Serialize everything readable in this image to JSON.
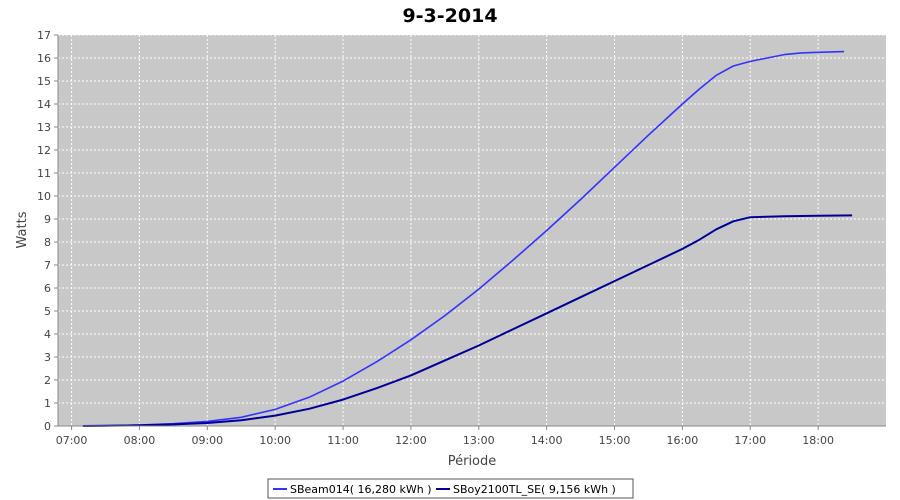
{
  "chart_data": {
    "type": "line",
    "title": "9-3-2014",
    "xlabel": "Période",
    "ylabel": "Watts",
    "x_ticks": [
      "07:00",
      "08:00",
      "09:00",
      "10:00",
      "11:00",
      "12:00",
      "13:00",
      "14:00",
      "15:00",
      "16:00",
      "17:00",
      "18:00"
    ],
    "xlim": [
      "06:48",
      "19:00"
    ],
    "ylim": [
      0,
      17
    ],
    "y_ticks": [
      0,
      1,
      2,
      3,
      4,
      5,
      6,
      7,
      8,
      9,
      10,
      11,
      12,
      13,
      14,
      15,
      16,
      17
    ],
    "grid": true,
    "legend_position": "bottom",
    "colors": {
      "plot_background": "#c8c8c8",
      "grid": "#ffffff",
      "series_1": "#3333ff",
      "series_2": "#000099"
    },
    "series": [
      {
        "name": "SBeam014( 16,280 kWh )",
        "x": [
          "07:10",
          "07:30",
          "08:00",
          "08:30",
          "09:00",
          "09:30",
          "10:00",
          "10:30",
          "11:00",
          "11:30",
          "12:00",
          "12:30",
          "13:00",
          "13:30",
          "14:00",
          "14:30",
          "15:00",
          "15:30",
          "16:00",
          "16:15",
          "16:30",
          "16:45",
          "17:00",
          "17:15",
          "17:30",
          "17:45",
          "18:00",
          "18:15",
          "18:23"
        ],
        "values": [
          0.0,
          0.01,
          0.04,
          0.1,
          0.2,
          0.38,
          0.72,
          1.25,
          1.95,
          2.8,
          3.75,
          4.8,
          5.95,
          7.2,
          8.5,
          9.85,
          11.25,
          12.65,
          14.0,
          14.65,
          15.25,
          15.65,
          15.85,
          16.0,
          16.15,
          16.22,
          16.25,
          16.27,
          16.28
        ]
      },
      {
        "name": "SBoy2100TL_SE( 9,156 kWh )",
        "x": [
          "07:10",
          "07:30",
          "08:00",
          "08:30",
          "09:00",
          "09:30",
          "10:00",
          "10:30",
          "11:00",
          "11:30",
          "12:00",
          "12:30",
          "13:00",
          "13:30",
          "14:00",
          "14:30",
          "15:00",
          "15:30",
          "16:00",
          "16:15",
          "16:30",
          "16:45",
          "17:00",
          "17:30",
          "18:00",
          "18:30"
        ],
        "values": [
          0.0,
          0.01,
          0.03,
          0.07,
          0.13,
          0.25,
          0.45,
          0.75,
          1.15,
          1.65,
          2.2,
          2.85,
          3.5,
          4.2,
          4.9,
          5.6,
          6.3,
          7.0,
          7.7,
          8.1,
          8.55,
          8.9,
          9.08,
          9.12,
          9.14,
          9.156
        ]
      }
    ]
  }
}
